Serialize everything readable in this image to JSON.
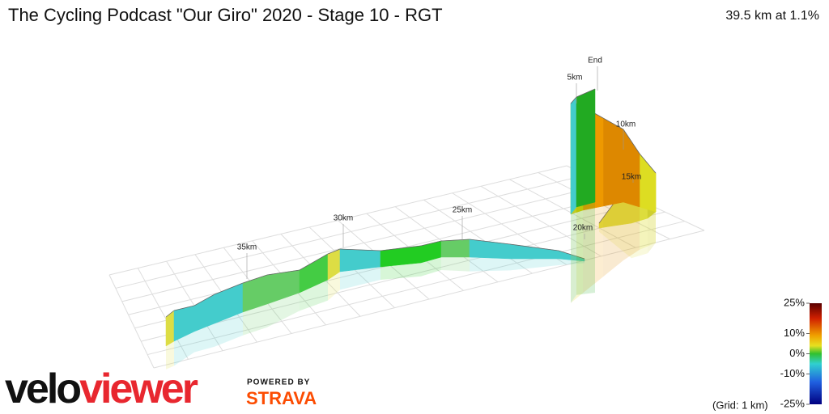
{
  "header": {
    "title": "The Cycling Podcast \"Our Giro\" 2020 - Stage 10 - RGT",
    "summary": "39.5 km at 1.1%"
  },
  "markers": [
    {
      "label": "End"
    },
    {
      "label": "5km"
    },
    {
      "label": "10km"
    },
    {
      "label": "15km"
    },
    {
      "label": "20km"
    },
    {
      "label": "25km"
    },
    {
      "label": "30km"
    },
    {
      "label": "35km"
    }
  ],
  "legend": {
    "ticks": [
      {
        "value": 25,
        "label": "25%"
      },
      {
        "value": 10,
        "label": "10%"
      },
      {
        "value": 0,
        "label": "0%"
      },
      {
        "value": -10,
        "label": "-10%"
      },
      {
        "value": -25,
        "label": "-25%"
      }
    ],
    "grid_note": "(Grid: 1 km)"
  },
  "logo": {
    "part1": "velo",
    "part2": "viewer",
    "powered_by": "POWERED BY",
    "strava": "STRAVA"
  }
}
